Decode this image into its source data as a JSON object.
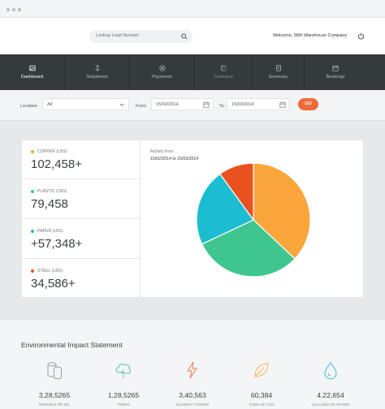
{
  "header": {
    "search_placeholder": "Lookup Load Number",
    "welcome": "Welcome, 56th Warehouse Company"
  },
  "nav": {
    "items": [
      {
        "label": "Dashboard",
        "icon": "chart-image-icon",
        "active": true
      },
      {
        "label": "Shipments",
        "icon": "anchor-icon",
        "active": false
      },
      {
        "label": "Payments",
        "icon": "coin-icon",
        "active": false
      },
      {
        "label": "Contracts",
        "icon": "documents-icon",
        "active": false
      },
      {
        "label": "Summary",
        "icon": "list-icon",
        "active": false
      },
      {
        "label": "Bookings",
        "icon": "calendar-icon",
        "active": false
      }
    ]
  },
  "filter": {
    "location_label": "Location",
    "location_value": "All",
    "from_label": "From",
    "from_value": "15/02/2014",
    "to_label": "To",
    "to_value": "15/03/2014",
    "go_label": "GO"
  },
  "stats": [
    {
      "label": "COPPER (LBS)",
      "value": "102,458+",
      "color": "#f5a623"
    },
    {
      "label": "PLASTIC (LBS)",
      "value": "79,458",
      "color": "#3cc48f"
    },
    {
      "label": "PAPER (LBS)",
      "value": "+57,348+",
      "color": "#1fbcd2"
    },
    {
      "label": "STEEL (LBS)",
      "value": "34,586+",
      "color": "#e8522a"
    }
  ],
  "activity": {
    "label": "Activity from",
    "range": "15/02/2014 to 15/03/2014"
  },
  "chart_data": {
    "type": "pie",
    "slices": [
      {
        "name": "Copper",
        "value": 37,
        "color": "#fba63b"
      },
      {
        "name": "Plastic",
        "value": 31,
        "color": "#3fc68e"
      },
      {
        "name": "Paper",
        "value": 22,
        "color": "#1cbdd0"
      },
      {
        "name": "Steel",
        "value": 10,
        "color": "#e9521e"
      }
    ]
  },
  "env": {
    "title": "Environmental Impact Statement",
    "items": [
      {
        "value": "3,28,5265",
        "label": "BARRELS OF OIL",
        "icon": "barrels-icon"
      },
      {
        "value": "1,28,5265",
        "label": "TREES",
        "icon": "tree-icon"
      },
      {
        "value": "3,40,563",
        "label": "KILOWATT HOURS",
        "icon": "lightning-icon"
      },
      {
        "value": "60,384",
        "label": "TONS OF CO2",
        "icon": "leaf-icon"
      },
      {
        "value": "4,22,654",
        "label": "GALLONS OF WATER",
        "icon": "water-drop-icon"
      }
    ]
  }
}
